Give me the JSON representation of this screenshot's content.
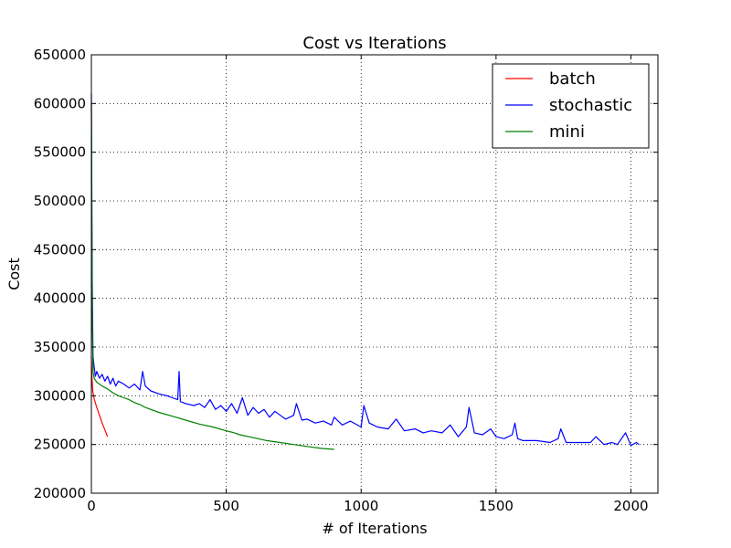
{
  "chart_data": {
    "type": "line",
    "title": "Cost vs Iterations",
    "xlabel": "# of Iterations",
    "ylabel": "Cost",
    "xlim": [
      0,
      2100
    ],
    "ylim": [
      200000,
      650000
    ],
    "xticks": [
      0,
      500,
      1000,
      1500,
      2000
    ],
    "yticks": [
      200000,
      250000,
      300000,
      350000,
      400000,
      450000,
      500000,
      550000,
      600000,
      650000
    ],
    "xtick_labels": [
      "0",
      "500",
      "1000",
      "1500",
      "2000"
    ],
    "ytick_labels": [
      "200000",
      "250000",
      "300000",
      "350000",
      "400000",
      "450000",
      "500000",
      "550000",
      "600000",
      "650000"
    ],
    "grid": true,
    "legend_position": "top-right",
    "series": [
      {
        "name": "batch",
        "color": "#ff0000",
        "x": [
          0,
          2,
          5,
          10,
          20,
          30,
          40,
          50,
          60
        ],
        "y": [
          340000,
          320000,
          305000,
          297000,
          288000,
          280000,
          272000,
          265000,
          258000
        ]
      },
      {
        "name": "stochastic",
        "color": "#0000ff",
        "x": [
          0,
          3,
          6,
          10,
          15,
          20,
          30,
          40,
          50,
          60,
          70,
          80,
          90,
          100,
          120,
          140,
          160,
          180,
          190,
          200,
          220,
          250,
          280,
          300,
          320,
          325,
          330,
          350,
          380,
          400,
          420,
          440,
          460,
          480,
          500,
          520,
          540,
          560,
          580,
          600,
          620,
          640,
          660,
          680,
          700,
          720,
          750,
          760,
          780,
          800,
          830,
          860,
          890,
          900,
          930,
          960,
          1000,
          1010,
          1030,
          1060,
          1100,
          1130,
          1160,
          1200,
          1230,
          1260,
          1300,
          1330,
          1360,
          1390,
          1400,
          1420,
          1450,
          1480,
          1500,
          1530,
          1560,
          1570,
          1580,
          1600,
          1650,
          1700,
          1730,
          1740,
          1760,
          1800,
          1850,
          1870,
          1900,
          1930,
          1950,
          1980,
          2000,
          2020,
          2030
        ],
        "y": [
          610000,
          420000,
          340000,
          330000,
          320000,
          325000,
          318000,
          322000,
          315000,
          320000,
          312000,
          318000,
          310000,
          315000,
          312000,
          308000,
          312000,
          306000,
          325000,
          310000,
          305000,
          302000,
          300000,
          298000,
          296000,
          325000,
          294000,
          292000,
          290000,
          292000,
          288000,
          296000,
          286000,
          290000,
          284000,
          292000,
          282000,
          298000,
          280000,
          288000,
          282000,
          286000,
          278000,
          284000,
          280000,
          276000,
          280000,
          292000,
          275000,
          276000,
          272000,
          274000,
          270000,
          278000,
          270000,
          274000,
          268000,
          290000,
          272000,
          268000,
          266000,
          276000,
          264000,
          266000,
          262000,
          264000,
          262000,
          270000,
          258000,
          268000,
          288000,
          262000,
          260000,
          266000,
          258000,
          256000,
          260000,
          272000,
          256000,
          254000,
          254000,
          252000,
          256000,
          266000,
          252000,
          252000,
          252000,
          258000,
          250000,
          252000,
          250000,
          262000,
          249000,
          252000,
          250000
        ]
      },
      {
        "name": "mini",
        "color": "#008000",
        "x": [
          0,
          3,
          6,
          10,
          20,
          40,
          60,
          80,
          100,
          120,
          140,
          160,
          180,
          200,
          250,
          300,
          350,
          400,
          450,
          500,
          530,
          550,
          600,
          650,
          700,
          750,
          800,
          850,
          900
        ],
        "y": [
          600000,
          380000,
          325000,
          318000,
          314000,
          310000,
          307000,
          303000,
          300000,
          298000,
          296000,
          293000,
          291000,
          288000,
          283000,
          279000,
          275000,
          271000,
          268000,
          264000,
          262000,
          260000,
          257000,
          254000,
          252000,
          250000,
          248000,
          246000,
          245000
        ]
      }
    ]
  }
}
